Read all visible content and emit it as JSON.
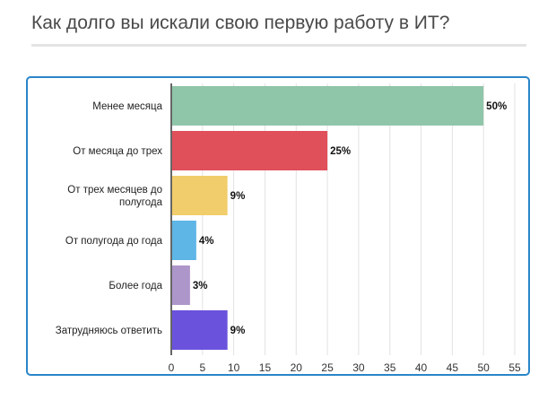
{
  "title": "Как долго вы искали свою первую работу в ИТ?",
  "chart_data": {
    "type": "bar",
    "orientation": "horizontal",
    "categories": [
      [
        "Менее месяца"
      ],
      [
        "От месяца до трех"
      ],
      [
        "От трех месяцев до",
        "полугода"
      ],
      [
        "От полугода до года"
      ],
      [
        "Более года"
      ],
      [
        "Затрудняюсь ответить"
      ]
    ],
    "values": [
      50,
      25,
      9,
      4,
      3,
      9
    ],
    "labels": [
      "50%",
      "25%",
      "9%",
      "4%",
      "3%",
      "9%"
    ],
    "colors": [
      "#8fc5a9",
      "#e0505a",
      "#f1cd6b",
      "#5db6e6",
      "#ad96ca",
      "#6b52dc"
    ],
    "xlim": [
      0,
      55
    ],
    "ticks": [
      0,
      5,
      10,
      15,
      20,
      25,
      30,
      35,
      40,
      45,
      50,
      55
    ],
    "grid": true,
    "legend": "none"
  }
}
